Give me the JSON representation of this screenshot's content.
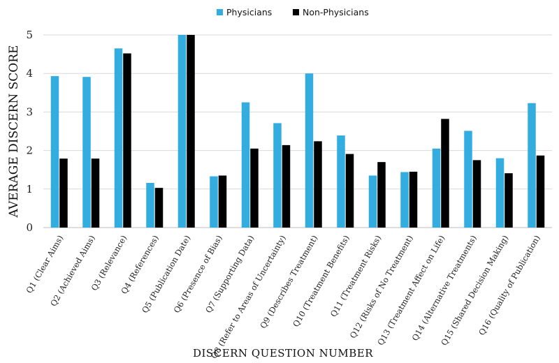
{
  "chart_data": {
    "type": "bar",
    "xlabel": "DISCERN QUESTION NUMBER",
    "ylabel": "AVERAGE DISCERN SCORE",
    "ylim": [
      0,
      5
    ],
    "yticks": [
      0,
      1,
      2,
      3,
      4,
      5
    ],
    "grid": true,
    "legend_position": "top-center",
    "categories": [
      "Q1 (Clear Aims)",
      "Q2 (Achieved Aims)",
      "Q3 (Relevance)",
      "Q4 (References)",
      "Q5 (Publication Date)",
      "Q6 (Presence of Bias)",
      "Q7 (Supporting Data)",
      "Q8 (Refer to Areas of Uncertainty)",
      "Q9 (Describes Treatment)",
      "Q10 (Treatment Benefits)",
      "Q11 (Treatment Risks)",
      "Q12 (Risks of No Treatment)",
      "Q13 (Treatment Affect on Life)",
      "Q14 (Alternative Treatments)",
      "Q15 (Shared Decision Making)",
      "Q16 (Quality of Publication)"
    ],
    "series": [
      {
        "name": "Physicians",
        "color": "#33ade0",
        "values": [
          3.93,
          3.91,
          4.65,
          1.16,
          5.0,
          1.33,
          3.25,
          2.71,
          4.0,
          2.39,
          1.35,
          1.44,
          2.05,
          2.51,
          1.8,
          3.23
        ]
      },
      {
        "name": "Non-Physicians",
        "color": "#000000",
        "values": [
          1.79,
          1.79,
          4.52,
          1.03,
          5.0,
          1.35,
          2.05,
          2.14,
          2.24,
          1.91,
          1.7,
          1.45,
          2.82,
          1.75,
          1.41,
          1.87
        ]
      }
    ]
  }
}
